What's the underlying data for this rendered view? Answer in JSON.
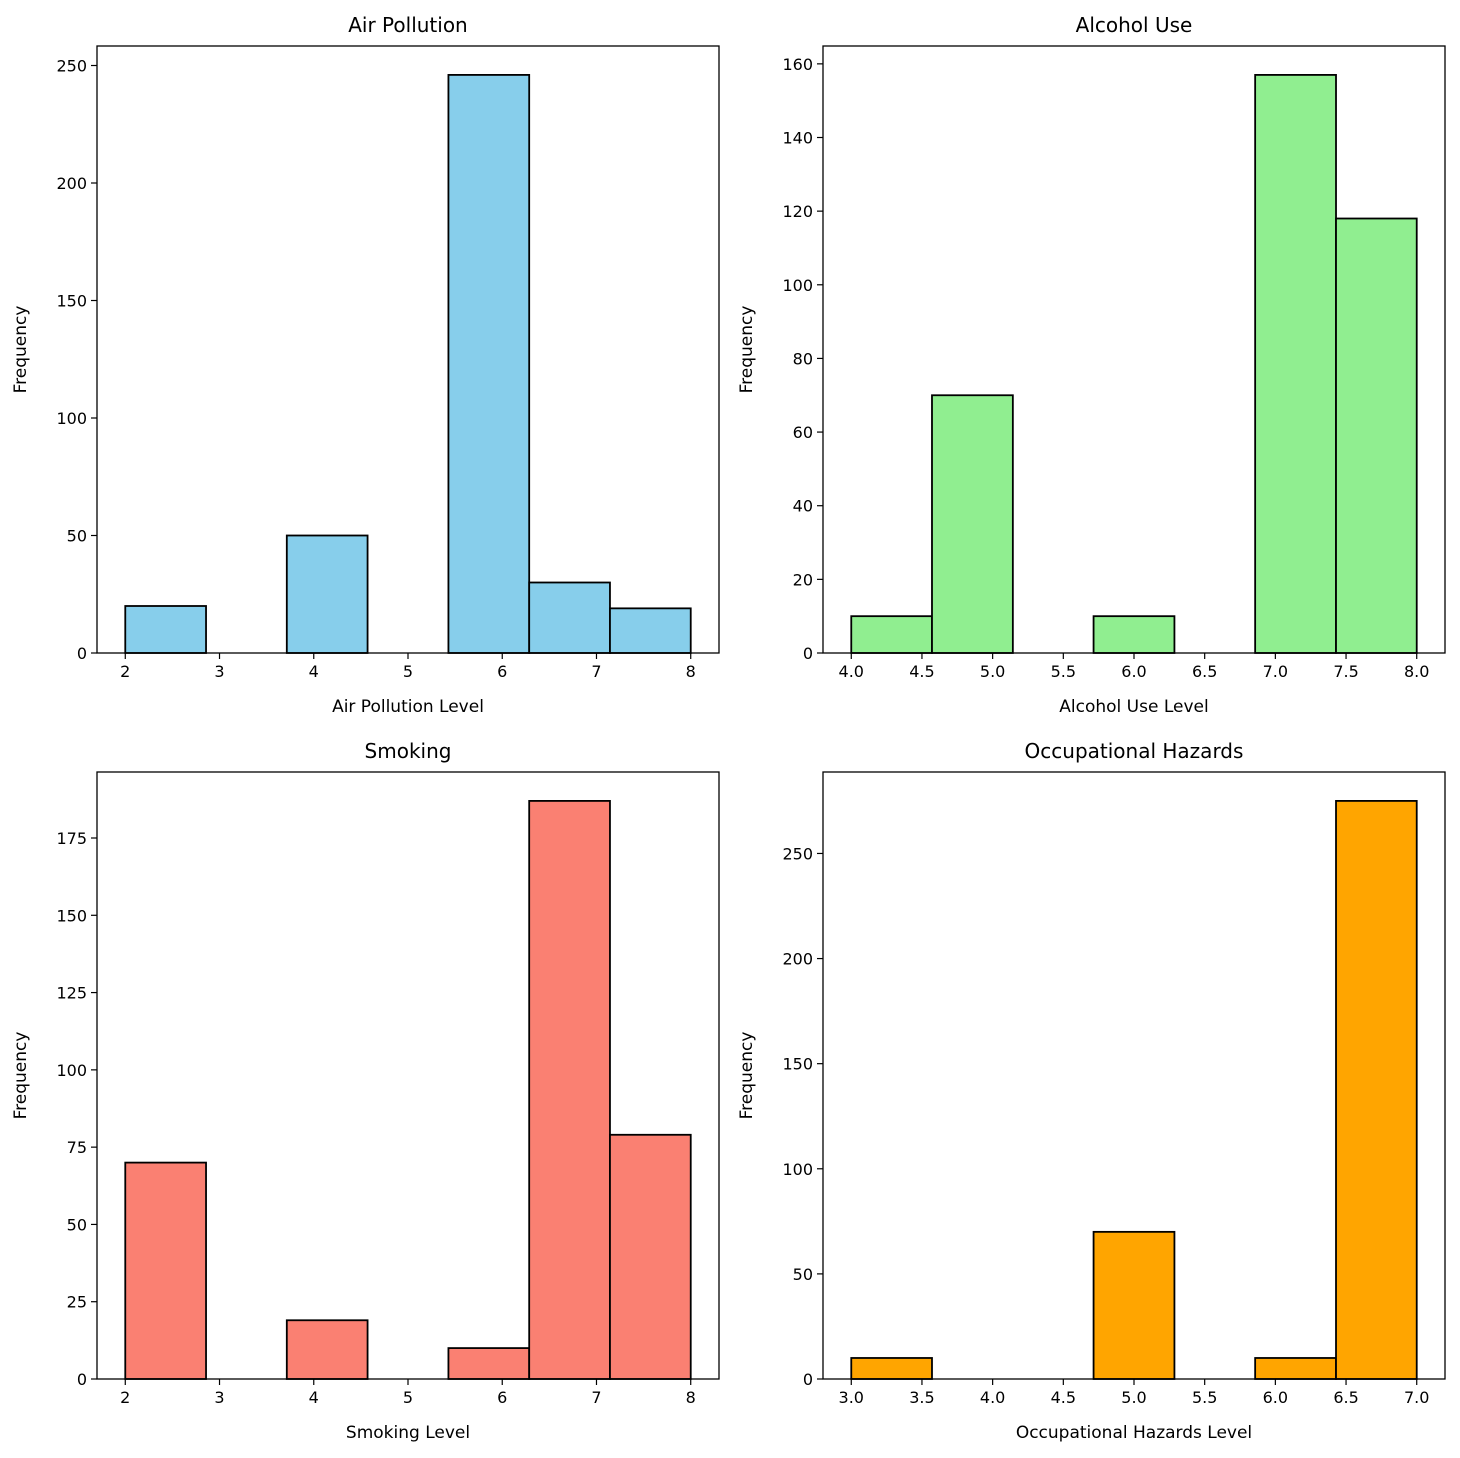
{
  "chart_data": [
    {
      "type": "bar",
      "title": "Air Pollution",
      "xlabel": "Air Pollution Level",
      "ylabel": "Frequency",
      "bin_edges": [
        2,
        2.857,
        3.714,
        4.571,
        5.429,
        6.286,
        7.143,
        8
      ],
      "values": [
        20,
        0,
        50,
        0,
        246,
        30,
        19
      ],
      "xlim": [
        1.7,
        8.3
      ],
      "ylim": [
        0,
        258.3
      ],
      "xticks": [
        2,
        3,
        4,
        5,
        6,
        7,
        8
      ],
      "xtick_labels": [
        "2",
        "3",
        "4",
        "5",
        "6",
        "7",
        "8"
      ],
      "yticks": [
        0,
        50,
        100,
        150,
        200,
        250
      ],
      "color": "#87CEEB",
      "grid": false
    },
    {
      "type": "bar",
      "title": "Alcohol Use",
      "xlabel": "Alcohol Use Level",
      "ylabel": "Frequency",
      "bin_edges": [
        4,
        4.571,
        5.143,
        5.714,
        6.286,
        6.857,
        7.429,
        8
      ],
      "values": [
        10,
        70,
        0,
        10,
        0,
        157,
        118
      ],
      "xlim": [
        3.8,
        8.2
      ],
      "ylim": [
        0,
        164.85
      ],
      "xticks": [
        4,
        4.5,
        5,
        5.5,
        6,
        6.5,
        7,
        7.5,
        8
      ],
      "xtick_labels": [
        "4.0",
        "4.5",
        "5.0",
        "5.5",
        "6.0",
        "6.5",
        "7.0",
        "7.5",
        "8.0"
      ],
      "yticks": [
        0,
        20,
        40,
        60,
        80,
        100,
        120,
        140,
        160
      ],
      "color": "#90EE90",
      "grid": false
    },
    {
      "type": "bar",
      "title": "Smoking",
      "xlabel": "Smoking Level",
      "ylabel": "Frequency",
      "bin_edges": [
        2,
        2.857,
        3.714,
        4.571,
        5.429,
        6.286,
        7.143,
        8
      ],
      "values": [
        70,
        0,
        19,
        0,
        10,
        187,
        79
      ],
      "xlim": [
        1.7,
        8.3
      ],
      "ylim": [
        0,
        196.35
      ],
      "xticks": [
        2,
        3,
        4,
        5,
        6,
        7,
        8
      ],
      "xtick_labels": [
        "2",
        "3",
        "4",
        "5",
        "6",
        "7",
        "8"
      ],
      "yticks": [
        0,
        25,
        50,
        75,
        100,
        125,
        150,
        175
      ],
      "color": "#FA8072",
      "grid": false
    },
    {
      "type": "bar",
      "title": "Occupational Hazards",
      "xlabel": "Occupational Hazards Level",
      "ylabel": "Frequency",
      "bin_edges": [
        3,
        3.571,
        4.143,
        4.714,
        5.286,
        5.857,
        6.429,
        7
      ],
      "values": [
        10,
        0,
        0,
        70,
        0,
        10,
        275
      ],
      "xlim": [
        2.8,
        7.2
      ],
      "ylim": [
        0,
        288.75
      ],
      "xticks": [
        3,
        3.5,
        4,
        4.5,
        5,
        5.5,
        6,
        6.5,
        7
      ],
      "xtick_labels": [
        "3.0",
        "3.5",
        "4.0",
        "4.5",
        "5.0",
        "5.5",
        "6.0",
        "6.5",
        "7.0"
      ],
      "yticks": [
        0,
        50,
        100,
        150,
        200,
        250
      ],
      "color": "#FFA500",
      "grid": false
    }
  ]
}
